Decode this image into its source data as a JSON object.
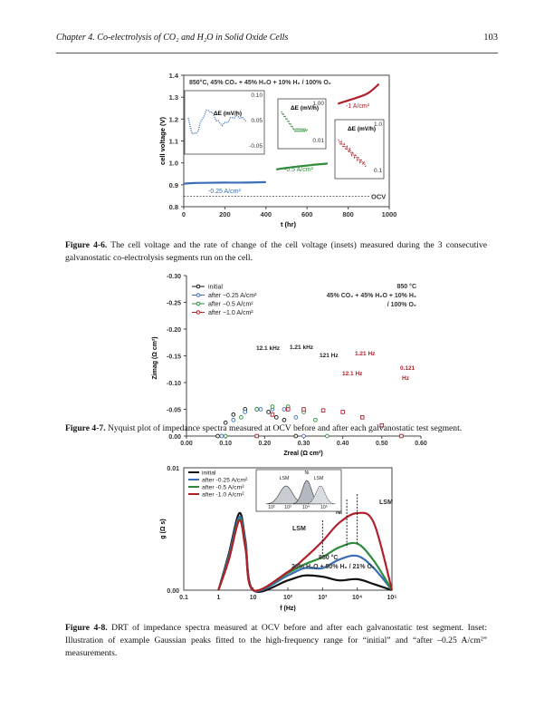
{
  "header": {
    "chapter": "Chapter 4. Co-electrolysis of CO₂ and H₂O in Solid Oxide Cells",
    "page_number": "103"
  },
  "captions": {
    "fig46_label": "Figure 4-6.",
    "fig46_text": " The cell voltage and the rate of change of the cell voltage (insets) measured during the 3 consecutive galvanostatic co-electrolysis segments run on the cell.",
    "fig47_label": "Figure 4-7.",
    "fig47_text": " Nyquist plot of impedance spectra measured at OCV before and after each galvanostatic test segment.",
    "fig48_label": "Figure 4-8.",
    "fig48_text": " DRT of impedance spectra measured at OCV before and after each galvanostatic test segment. Inset: Illustration of example Gaussian peaks fitted to the high-frequency range for “initial” and “after –0.25 A/cm²” measurements."
  },
  "colors": {
    "blue": "#3a6fb7",
    "green": "#2e8b3a",
    "red": "#b0202a",
    "black": "#111111",
    "gray": "#9aa0a6"
  },
  "chart_data": [
    {
      "type": "line",
      "title": "850°C, 45% CO₂ + 45% H₂O + 10% H₂ / 100% O₂",
      "xlabel": "t (hr)",
      "ylabel": "cell voltage (V)",
      "xlim": [
        0,
        1000
      ],
      "ylim": [
        0.8,
        1.4
      ],
      "xticks": [
        "0",
        "200",
        "400",
        "600",
        "800",
        "1000"
      ],
      "yticks": [
        "0.8",
        "0.9",
        "1.0",
        "1.1",
        "1.2",
        "1.3",
        "1.4"
      ],
      "ocv_label": "OCV",
      "series": [
        {
          "name": "-0.25 A/cm²",
          "color": "#3a6fb7",
          "x": [
            0,
            50,
            100,
            200,
            300,
            400
          ],
          "y": [
            0.905,
            0.908,
            0.909,
            0.91,
            0.91,
            0.912
          ]
        },
        {
          "name": "-0.5 A/cm²",
          "color": "#2e8b3a",
          "x": [
            450,
            500,
            550,
            600,
            650,
            700
          ],
          "y": [
            0.97,
            0.977,
            0.983,
            0.988,
            0.993,
            0.997
          ]
        },
        {
          "name": "-1 A/cm²",
          "color": "#b0202a",
          "x": [
            750,
            800,
            850,
            900,
            950
          ],
          "y": [
            1.27,
            1.285,
            1.3,
            1.32,
            1.36
          ]
        }
      ],
      "insets": [
        {
          "ylabel": "ΔE (mV/h)",
          "yticks": [
            "0.10",
            "0.05",
            "-0.05"
          ],
          "series_color": "#3a6fb7"
        },
        {
          "ylabel": "ΔE (mV/h)",
          "yticks": [
            "1.00",
            "0.01"
          ],
          "series_color": "#2e8b3a"
        },
        {
          "ylabel": "ΔE (mV/h)",
          "yticks": [
            "1.0",
            "0.1"
          ],
          "series_color": "#b0202a"
        }
      ]
    },
    {
      "type": "scatter",
      "xlabel": "Zreal (Ω cm²)",
      "ylabel": "Zimag (Ω cm²)",
      "xlim": [
        0,
        0.6
      ],
      "ylim": [
        -0.3,
        0.0
      ],
      "xticks": [
        "0.00",
        "0.10",
        "0.20",
        "0.30",
        "0.40",
        "0.50",
        "0.60"
      ],
      "yticks": [
        "-0.30",
        "-0.25",
        "-0.20",
        "-0.15",
        "-0.10",
        "-0.05",
        "0.00"
      ],
      "conditions": [
        "850 °C",
        "45% CO₂ + 45% H₂O + 10% H₂",
        "/ 100% O₂"
      ],
      "annotations": [
        "12.1 kHz",
        "1.21 kHz",
        "121 Hz",
        "1.21 Hz",
        "12.1 Hz",
        "0.121",
        "Hz"
      ],
      "series": [
        {
          "name": "initial",
          "color": "#111111",
          "x": [
            0.08,
            0.1,
            0.12,
            0.15,
            0.18,
            0.21,
            0.23,
            0.25,
            0.28
          ],
          "y": [
            0.0,
            -0.025,
            -0.04,
            -0.05,
            -0.05,
            -0.045,
            -0.035,
            -0.03,
            -0.0
          ]
        },
        {
          "name": "after −0.25 A/cm²",
          "color": "#3a6fb7",
          "x": [
            0.09,
            0.12,
            0.15,
            0.19,
            0.22,
            0.25,
            0.28,
            0.3
          ],
          "y": [
            0.0,
            -0.03,
            -0.045,
            -0.05,
            -0.05,
            -0.05,
            -0.035,
            0.0
          ]
        },
        {
          "name": "after −0.5 A/cm²",
          "color": "#2e8b3a",
          "x": [
            0.1,
            0.14,
            0.18,
            0.22,
            0.26,
            0.3,
            0.33,
            0.36
          ],
          "y": [
            0.0,
            -0.035,
            -0.05,
            -0.055,
            -0.055,
            -0.045,
            -0.03,
            0.0
          ]
        },
        {
          "name": "after −1.0 A/cm²",
          "color": "#b0202a",
          "x": [
            0.18,
            0.22,
            0.26,
            0.3,
            0.35,
            0.4,
            0.45,
            0.5,
            0.55
          ],
          "y": [
            0.0,
            -0.04,
            -0.05,
            -0.05,
            -0.048,
            -0.045,
            -0.035,
            -0.02,
            0.0
          ]
        }
      ]
    },
    {
      "type": "line",
      "xlabel": "f (Hz)",
      "ylabel": "g (Ω s)",
      "xscale": "log",
      "xlim": [
        0.1,
        100000
      ],
      "ylim": [
        0.0,
        0.01
      ],
      "xticks": [
        "0.1",
        "1",
        "10",
        "10²",
        "10³",
        "10⁴",
        "10⁵"
      ],
      "yticks": [
        "0.01",
        "0.00"
      ],
      "conditions": [
        "850 °C",
        "20% H₂O + 80% H₂ / 21% O₂"
      ],
      "annotations": [
        "LSM",
        "Ni",
        "LSM"
      ],
      "inset_labels": [
        "LSM",
        "Ni",
        "LSM",
        "10²",
        "10³",
        "10⁴",
        "10⁵"
      ],
      "series": [
        {
          "name": "initial",
          "color": "#111111",
          "x": [
            1,
            2,
            4,
            6,
            10,
            100,
            300,
            1000,
            3000,
            10000,
            30000,
            100000
          ],
          "y": [
            0.0,
            0.003,
            0.0063,
            0.004,
            0.0,
            0.0008,
            0.0012,
            0.0011,
            0.0008,
            0.0009,
            0.0005,
            0.0
          ]
        },
        {
          "name": "after -0.25 A/cm²",
          "color": "#3a6fb7",
          "x": [
            1,
            2,
            4,
            6,
            10,
            100,
            300,
            1000,
            3000,
            10000,
            30000,
            100000
          ],
          "y": [
            0.0,
            0.0028,
            0.006,
            0.0038,
            0.0,
            0.0012,
            0.0018,
            0.0018,
            0.0025,
            0.0028,
            0.0018,
            0.0
          ]
        },
        {
          "name": "after -0.5 A/cm²",
          "color": "#2e8b3a",
          "x": [
            1,
            2,
            4,
            6,
            10,
            100,
            300,
            1000,
            3000,
            10000,
            30000,
            100000
          ],
          "y": [
            0.0,
            0.0026,
            0.0058,
            0.0035,
            0.0,
            0.0014,
            0.0021,
            0.0027,
            0.0035,
            0.0038,
            0.0024,
            0.0
          ]
        },
        {
          "name": "after -1.0 A/cm²",
          "color": "#b0202a",
          "x": [
            1,
            2,
            4,
            6,
            10,
            100,
            300,
            1000,
            3000,
            10000,
            30000,
            100000
          ],
          "y": [
            0.0,
            0.0025,
            0.0057,
            0.0034,
            0.0,
            0.0015,
            0.0026,
            0.004,
            0.0055,
            0.0063,
            0.0055,
            0.0
          ]
        }
      ]
    }
  ]
}
